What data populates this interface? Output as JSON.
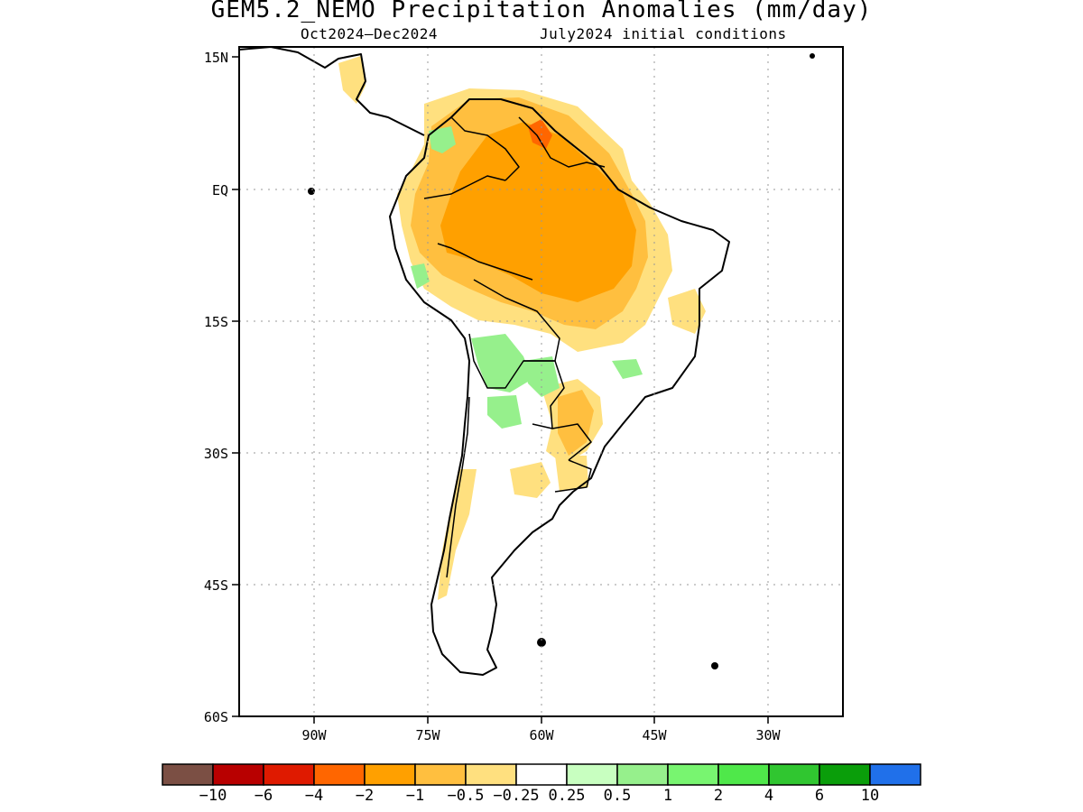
{
  "title": "GEM5.2_NEMO Precipitation Anomalies (mm/day)",
  "subtitle_left": "Oct2024–Dec2024",
  "subtitle_right": "July2024 initial conditions",
  "axes": {
    "lat_labels": [
      "15N",
      "EQ",
      "15S",
      "30S",
      "45S",
      "60S"
    ],
    "lon_labels": [
      "90W",
      "75W",
      "60W",
      "45W",
      "30W"
    ]
  },
  "colorbar": {
    "colors": [
      "#7b4f44",
      "#b80000",
      "#df1a00",
      "#ff6600",
      "#ffa000",
      "#ffbf3f",
      "#ffe07f",
      "#ffffff",
      "#c8ffc0",
      "#96f08c",
      "#78f570",
      "#4fe84a",
      "#30c630",
      "#0a9e0a",
      "#2070ea"
    ],
    "labels": [
      "−10",
      "−6",
      "−4",
      "−2",
      "−1",
      "−0.5",
      "−0.25",
      "0.25",
      "0.5",
      "1",
      "2",
      "4",
      "6",
      "10"
    ]
  }
}
